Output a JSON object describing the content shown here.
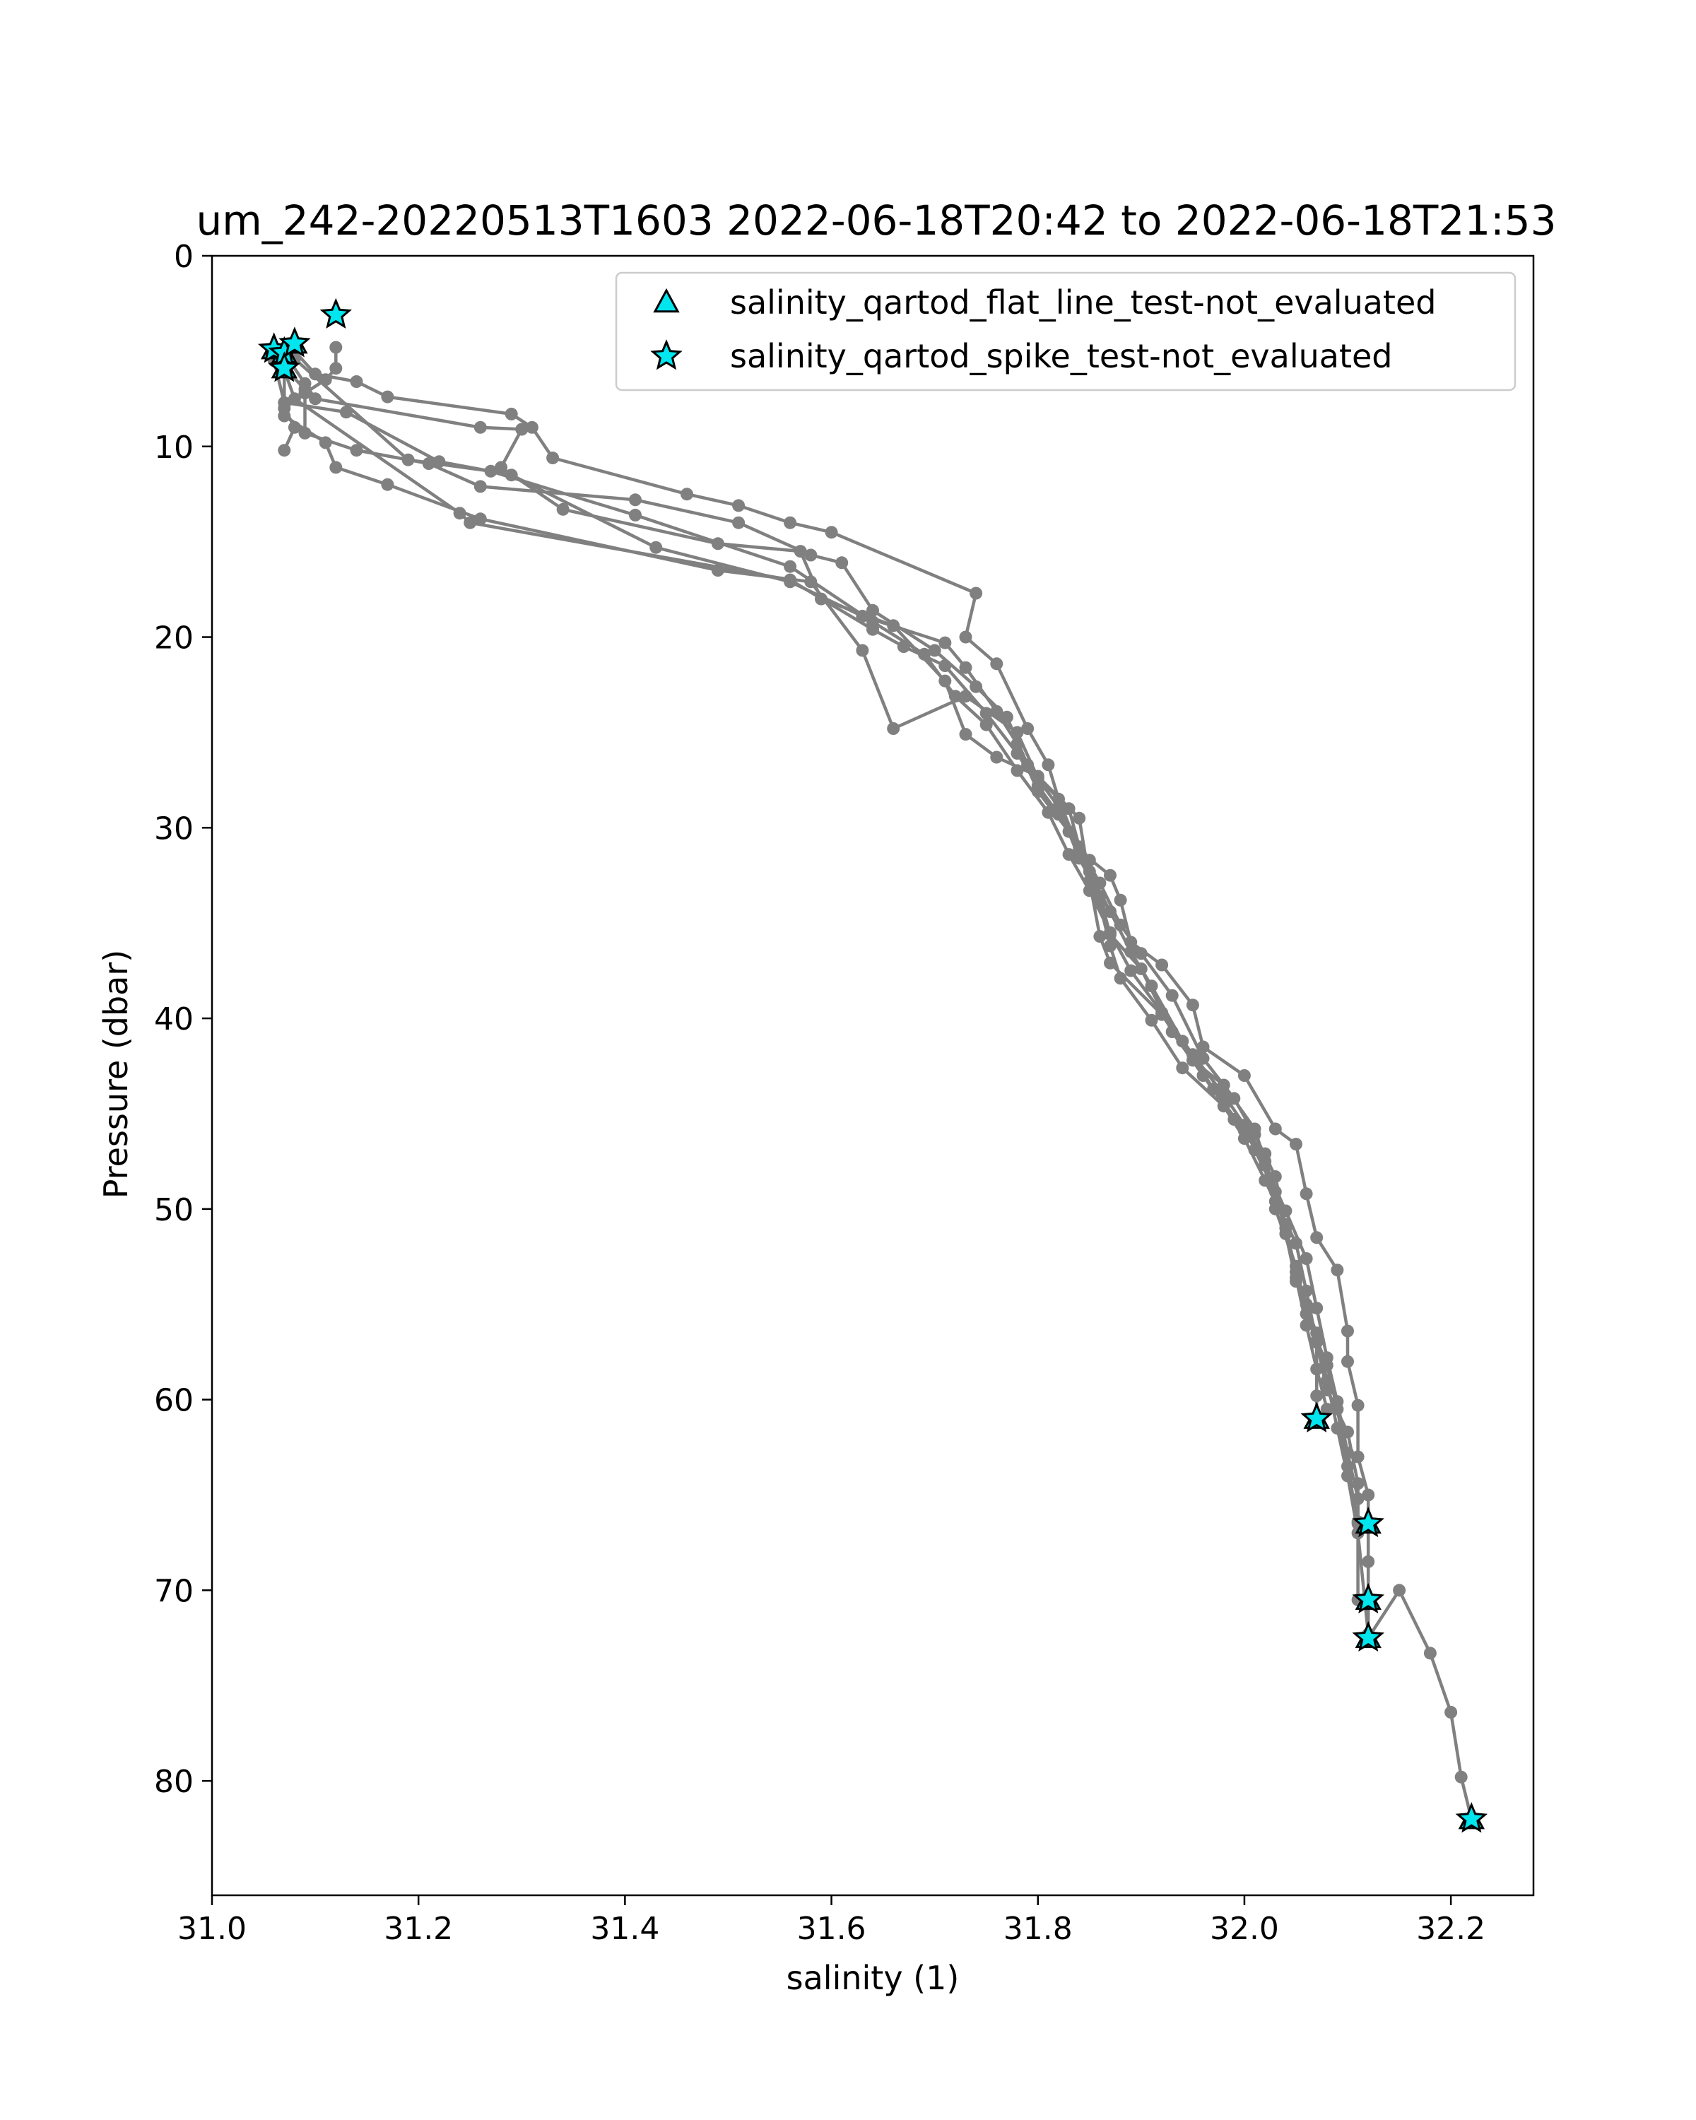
{
  "chart_data": {
    "type": "line",
    "title": "um_242-20220513T1603 2022-06-18T20:42 to 2022-06-18T21:53",
    "xlabel": "salinity (1)",
    "ylabel": "Pressure (dbar)",
    "xlim": [
      31.0,
      32.28
    ],
    "ylim": [
      86,
      0
    ],
    "y_inverted": true,
    "xticks": [
      31.0,
      31.2,
      31.4,
      31.6,
      31.8,
      32.0,
      32.2
    ],
    "xtick_labels": [
      "31.0",
      "31.2",
      "31.4",
      "31.6",
      "31.8",
      "32.0",
      "32.2"
    ],
    "yticks": [
      0,
      10,
      20,
      30,
      40,
      50,
      60,
      70,
      80
    ],
    "ytick_labels": [
      "0",
      "10",
      "20",
      "30",
      "40",
      "50",
      "60",
      "70",
      "80"
    ],
    "grid": false,
    "legend_position": "top-right",
    "legend": [
      {
        "label": "salinity_qartod_flat_line_test-not_evaluated",
        "marker": "triangle",
        "color": "#00e5ee"
      },
      {
        "label": "salinity_qartod_spike_test-not_evaluated",
        "marker": "star",
        "color": "#00e5ee"
      }
    ],
    "line_color": "#808080",
    "series": [
      {
        "values": [
          [
            31.08,
            5.0
          ],
          [
            31.1,
            6.2
          ],
          [
            31.14,
            6.6
          ],
          [
            31.17,
            7.4
          ],
          [
            31.29,
            8.3
          ],
          [
            31.31,
            9.0
          ],
          [
            31.33,
            10.6
          ],
          [
            31.46,
            12.5
          ],
          [
            31.51,
            13.1
          ],
          [
            31.56,
            14.0
          ],
          [
            31.6,
            14.5
          ],
          [
            31.74,
            17.7
          ],
          [
            31.73,
            20.0
          ],
          [
            31.76,
            21.4
          ],
          [
            31.79,
            24.8
          ],
          [
            31.81,
            26.7
          ],
          [
            31.82,
            28.5
          ],
          [
            31.84,
            31.2
          ],
          [
            31.87,
            32.5
          ],
          [
            31.88,
            33.8
          ],
          [
            31.89,
            36.0
          ],
          [
            31.92,
            37.2
          ],
          [
            31.95,
            39.3
          ],
          [
            31.96,
            41.5
          ],
          [
            32.0,
            43.0
          ],
          [
            32.03,
            45.8
          ],
          [
            32.05,
            46.6
          ],
          [
            32.06,
            49.2
          ],
          [
            32.07,
            51.5
          ],
          [
            32.09,
            53.2
          ],
          [
            32.1,
            56.4
          ],
          [
            32.1,
            58.0
          ],
          [
            32.11,
            60.3
          ],
          [
            32.11,
            63.0
          ],
          [
            32.12,
            65.0
          ],
          [
            32.12,
            66.5
          ],
          [
            32.12,
            68.5
          ],
          [
            32.12,
            70.5
          ],
          [
            32.12,
            72.5
          ],
          [
            32.15,
            70.0
          ],
          [
            32.18,
            73.3
          ],
          [
            32.2,
            76.4
          ],
          [
            32.21,
            79.8
          ],
          [
            32.22,
            82.0
          ]
        ]
      },
      {
        "values": [
          [
            31.07,
            5.1
          ],
          [
            31.09,
            6.7
          ],
          [
            31.1,
            7.5
          ],
          [
            31.26,
            9.0
          ],
          [
            31.3,
            9.1
          ],
          [
            31.28,
            11.1
          ],
          [
            31.34,
            13.3
          ],
          [
            31.49,
            15.1
          ],
          [
            31.57,
            15.5
          ],
          [
            31.59,
            18.0
          ],
          [
            31.66,
            19.4
          ],
          [
            31.71,
            22.3
          ],
          [
            31.73,
            25.1
          ],
          [
            31.76,
            26.3
          ],
          [
            31.8,
            27.3
          ],
          [
            31.84,
            29.5
          ],
          [
            31.85,
            32.8
          ],
          [
            31.86,
            35.7
          ],
          [
            31.87,
            37.1
          ],
          [
            31.92,
            39.8
          ],
          [
            31.95,
            42.2
          ],
          [
            31.98,
            43.5
          ],
          [
            32.01,
            45.8
          ],
          [
            32.02,
            47.5
          ],
          [
            32.03,
            50.0
          ],
          [
            32.05,
            53.0
          ],
          [
            32.06,
            55.5
          ],
          [
            32.08,
            58.2
          ],
          [
            32.09,
            60.5
          ],
          [
            32.1,
            63.5
          ],
          [
            32.11,
            66.5
          ]
        ]
      },
      {
        "values": [
          [
            31.06,
            5.3
          ],
          [
            31.09,
            7.0
          ],
          [
            31.09,
            9.3
          ],
          [
            31.14,
            10.2
          ],
          [
            31.21,
            10.9
          ],
          [
            31.26,
            12.1
          ],
          [
            31.41,
            12.8
          ],
          [
            31.51,
            14.0
          ],
          [
            31.58,
            15.7
          ],
          [
            31.61,
            16.1
          ],
          [
            31.64,
            18.6
          ],
          [
            31.7,
            20.7
          ],
          [
            31.74,
            22.6
          ],
          [
            31.77,
            24.2
          ],
          [
            31.79,
            26.7
          ],
          [
            31.82,
            28.9
          ],
          [
            31.84,
            31.6
          ],
          [
            31.86,
            33.6
          ],
          [
            31.87,
            35.6
          ],
          [
            31.9,
            37.4
          ],
          [
            31.93,
            40.7
          ],
          [
            31.96,
            43.0
          ],
          [
            31.99,
            45.3
          ],
          [
            32.02,
            47.1
          ],
          [
            32.03,
            49.6
          ],
          [
            32.05,
            51.8
          ],
          [
            32.06,
            54.3
          ],
          [
            32.07,
            57.0
          ],
          [
            32.08,
            59.5
          ],
          [
            32.1,
            61.7
          ],
          [
            32.11,
            64.4
          ],
          [
            32.11,
            66.4
          ]
        ]
      },
      {
        "values": [
          [
            31.06,
            5.5
          ],
          [
            31.07,
            7.7
          ],
          [
            31.13,
            8.2
          ],
          [
            31.22,
            10.8
          ],
          [
            31.29,
            11.5
          ],
          [
            31.43,
            15.3
          ],
          [
            31.56,
            17.1
          ],
          [
            31.63,
            18.9
          ],
          [
            31.71,
            20.3
          ],
          [
            31.73,
            21.6
          ],
          [
            31.76,
            23.9
          ],
          [
            31.78,
            25.6
          ],
          [
            31.8,
            28.1
          ],
          [
            31.83,
            30.2
          ],
          [
            31.85,
            32.3
          ],
          [
            31.87,
            34.4
          ],
          [
            31.89,
            36.5
          ],
          [
            31.91,
            38.3
          ],
          [
            31.94,
            41.2
          ],
          [
            31.97,
            43.7
          ],
          [
            32.0,
            45.9
          ],
          [
            32.02,
            47.7
          ],
          [
            32.04,
            50.1
          ],
          [
            32.06,
            52.6
          ],
          [
            32.07,
            55.2
          ],
          [
            32.08,
            57.8
          ],
          [
            32.09,
            60.1
          ],
          [
            32.1,
            62.8
          ],
          [
            32.11,
            65.2
          ],
          [
            32.11,
            70.5
          ]
        ]
      },
      {
        "values": [
          [
            31.07,
            5.8
          ],
          [
            31.07,
            8.4
          ],
          [
            31.11,
            9.8
          ],
          [
            31.12,
            11.1
          ],
          [
            31.17,
            12.0
          ],
          [
            31.26,
            13.8
          ],
          [
            31.49,
            16.5
          ],
          [
            31.58,
            17.1
          ],
          [
            31.63,
            20.7
          ],
          [
            31.66,
            24.8
          ],
          [
            31.73,
            23.1
          ],
          [
            31.78,
            25.0
          ],
          [
            31.8,
            27.4
          ],
          [
            31.83,
            29.0
          ],
          [
            31.84,
            31.0
          ],
          [
            31.86,
            32.9
          ],
          [
            31.88,
            35.1
          ],
          [
            31.9,
            36.6
          ],
          [
            31.93,
            38.8
          ],
          [
            31.96,
            42.1
          ],
          [
            31.99,
            44.2
          ],
          [
            32.01,
            46.1
          ],
          [
            32.03,
            48.3
          ],
          [
            32.04,
            51.0
          ],
          [
            32.05,
            53.3
          ],
          [
            32.06,
            55.0
          ],
          [
            32.07,
            56.9
          ],
          [
            32.07,
            59.8
          ],
          [
            32.07,
            61.0
          ]
        ]
      },
      {
        "values": [
          [
            31.07,
            6.0
          ],
          [
            31.08,
            7.5
          ],
          [
            31.24,
            13.5
          ],
          [
            31.25,
            14.0
          ],
          [
            31.56,
            17.0
          ],
          [
            31.64,
            19.6
          ],
          [
            31.67,
            20.5
          ],
          [
            31.71,
            21.5
          ],
          [
            31.75,
            24.0
          ],
          [
            31.78,
            26.1
          ],
          [
            31.8,
            27.8
          ],
          [
            31.82,
            29.3
          ],
          [
            31.85,
            31.7
          ],
          [
            31.86,
            34.0
          ],
          [
            31.87,
            36.2
          ],
          [
            31.88,
            37.9
          ],
          [
            31.91,
            40.1
          ],
          [
            31.94,
            42.6
          ],
          [
            31.98,
            44.6
          ],
          [
            32.0,
            46.3
          ],
          [
            32.02,
            48.5
          ],
          [
            32.04,
            50.8
          ],
          [
            32.05,
            53.6
          ],
          [
            32.06,
            56.1
          ],
          [
            32.07,
            58.4
          ],
          [
            32.08,
            60.5
          ]
        ]
      },
      {
        "values": [
          [
            31.08,
            5.4
          ],
          [
            31.19,
            10.7
          ],
          [
            31.27,
            11.3
          ],
          [
            31.41,
            13.6
          ],
          [
            31.56,
            16.3
          ],
          [
            31.64,
            19.2
          ],
          [
            31.69,
            20.9
          ],
          [
            31.72,
            23.1
          ],
          [
            31.75,
            24.6
          ],
          [
            31.78,
            27.0
          ],
          [
            31.81,
            29.2
          ],
          [
            31.83,
            31.4
          ],
          [
            31.85,
            33.3
          ],
          [
            31.87,
            35.5
          ],
          [
            31.89,
            37.5
          ],
          [
            31.92,
            39.7
          ],
          [
            31.95,
            41.9
          ],
          [
            31.98,
            44.0
          ],
          [
            32.0,
            45.6
          ],
          [
            32.01,
            46.9
          ],
          [
            32.03,
            49.1
          ],
          [
            32.04,
            51.3
          ],
          [
            32.05,
            53.8
          ],
          [
            32.07,
            56.5
          ],
          [
            32.08,
            59.0
          ],
          [
            32.09,
            61.5
          ],
          [
            32.1,
            64.0
          ],
          [
            32.11,
            67.0
          ],
          [
            32.12,
            72.3
          ]
        ]
      },
      {
        "values": [
          [
            31.12,
            4.8
          ],
          [
            31.12,
            5.9
          ],
          [
            31.11,
            6.5
          ],
          [
            31.09,
            7.2
          ],
          [
            31.07,
            8.0
          ],
          [
            31.08,
            9.0
          ],
          [
            31.07,
            10.2
          ]
        ]
      }
    ],
    "flat_line_test_markers": [
      [
        31.06,
        4.9
      ],
      [
        31.07,
        5.1
      ],
      [
        31.08,
        4.6
      ],
      [
        31.07,
        5.9
      ],
      [
        32.07,
        61.0
      ],
      [
        32.12,
        66.5
      ],
      [
        32.12,
        70.5
      ],
      [
        32.12,
        72.5
      ],
      [
        32.22,
        82.0
      ]
    ],
    "spike_test_markers": [
      [
        31.06,
        4.9
      ],
      [
        31.07,
        5.1
      ],
      [
        31.08,
        4.6
      ],
      [
        31.07,
        5.9
      ],
      [
        31.12,
        3.1
      ],
      [
        32.07,
        61.0
      ],
      [
        32.12,
        66.5
      ],
      [
        32.12,
        70.5
      ],
      [
        32.12,
        72.5
      ],
      [
        32.22,
        82.0
      ]
    ]
  }
}
